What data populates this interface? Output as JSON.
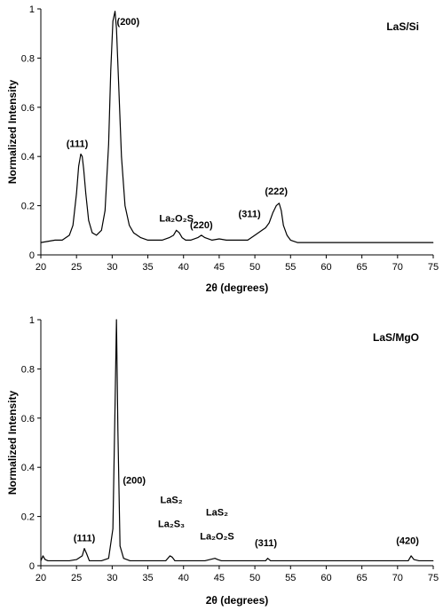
{
  "chart_data": [
    {
      "type": "line",
      "title": "LaS/Si",
      "xlabel": "2θ (degrees)",
      "ylabel": "Normalized Intensity",
      "xlim": [
        20,
        75
      ],
      "ylim": [
        0,
        1
      ],
      "xticks": [
        "20",
        "25",
        "30",
        "35",
        "40",
        "45",
        "50",
        "55",
        "60",
        "65",
        "70",
        "75"
      ],
      "yticks": [
        "0",
        "0.2",
        "0.4",
        "0.6",
        "0.8",
        "1"
      ],
      "grid": false,
      "series": [
        {
          "x": [
            20,
            21,
            22,
            23,
            24,
            24.5,
            25,
            25.3,
            25.6,
            25.8,
            26,
            26.3,
            26.7,
            27.2,
            27.8,
            28.5,
            29,
            29.5,
            29.8,
            30.1,
            30.4,
            30.6,
            30.9,
            31.3,
            31.8,
            32.4,
            33,
            34,
            35,
            36,
            37,
            38,
            38.6,
            39,
            39.4,
            39.8,
            40.3,
            41,
            42,
            42.5,
            43,
            44,
            45,
            46,
            47,
            48,
            49,
            50,
            51,
            51.5,
            52,
            52.5,
            53,
            53.4,
            53.7,
            54,
            54.5,
            55,
            56,
            57,
            58,
            60,
            62,
            64,
            66,
            68,
            70,
            72,
            74,
            75
          ],
          "values": [
            0.05,
            0.055,
            0.06,
            0.06,
            0.08,
            0.12,
            0.25,
            0.36,
            0.41,
            0.4,
            0.35,
            0.25,
            0.14,
            0.09,
            0.08,
            0.1,
            0.18,
            0.45,
            0.75,
            0.95,
            0.99,
            0.92,
            0.7,
            0.4,
            0.2,
            0.12,
            0.09,
            0.07,
            0.06,
            0.06,
            0.06,
            0.07,
            0.08,
            0.1,
            0.09,
            0.07,
            0.06,
            0.06,
            0.07,
            0.08,
            0.07,
            0.06,
            0.065,
            0.06,
            0.06,
            0.06,
            0.06,
            0.08,
            0.1,
            0.11,
            0.13,
            0.17,
            0.2,
            0.21,
            0.18,
            0.12,
            0.08,
            0.06,
            0.05,
            0.05,
            0.05,
            0.05,
            0.05,
            0.05,
            0.05,
            0.05,
            0.05,
            0.05,
            0.05,
            0.05
          ]
        }
      ],
      "annotations": [
        {
          "text": "(200)",
          "x": 30.5,
          "y": 1
        },
        {
          "text": "(111)",
          "x": 25.6,
          "y": 0.41
        },
        {
          "text": "La₂O₂S",
          "x": 39,
          "y": 0.1
        },
        {
          "text": "(220)",
          "x": 42.5,
          "y": 0.08
        },
        {
          "text": "(311)",
          "x": 49.5,
          "y": 0.11
        },
        {
          "text": "(222)",
          "x": 53.5,
          "y": 0.21
        }
      ]
    },
    {
      "type": "line",
      "title": "LaS/MgO",
      "xlabel": "2θ (degrees)",
      "ylabel": "Normalized Intensity",
      "xlim": [
        20,
        75
      ],
      "ylim": [
        0,
        1
      ],
      "xticks": [
        "20",
        "25",
        "30",
        "35",
        "40",
        "45",
        "50",
        "55",
        "60",
        "65",
        "70",
        "75"
      ],
      "yticks": [
        "0",
        "0.2",
        "0.4",
        "0.6",
        "0.8",
        "1"
      ],
      "grid": false,
      "series": [
        {
          "x": [
            20,
            20.3,
            20.6,
            21,
            22,
            23,
            24,
            25,
            25.8,
            26.1,
            26.4,
            26.8,
            27.5,
            28.5,
            29.5,
            30.1,
            30.4,
            30.6,
            30.8,
            31.1,
            31.6,
            32.5,
            34,
            36,
            37.5,
            38.1,
            38.4,
            38.8,
            39.5,
            41,
            43,
            44.4,
            44.8,
            45.3,
            47,
            50,
            51.5,
            51.8,
            52.2,
            53,
            55,
            60,
            65,
            70,
            71.5,
            71.9,
            72.3,
            73,
            75
          ],
          "values": [
            0.02,
            0.04,
            0.025,
            0.02,
            0.02,
            0.02,
            0.02,
            0.025,
            0.04,
            0.07,
            0.05,
            0.02,
            0.02,
            0.02,
            0.03,
            0.15,
            0.65,
            1.0,
            0.55,
            0.08,
            0.03,
            0.02,
            0.02,
            0.02,
            0.02,
            0.04,
            0.035,
            0.02,
            0.02,
            0.02,
            0.02,
            0.03,
            0.025,
            0.02,
            0.02,
            0.02,
            0.02,
            0.03,
            0.02,
            0.02,
            0.02,
            0.02,
            0.02,
            0.02,
            0.02,
            0.04,
            0.025,
            0.02,
            0.02
          ]
        }
      ],
      "annotations": [
        {
          "text": "(200)",
          "x": 30.6,
          "y": 0.55
        },
        {
          "text": "(111)",
          "x": 26.1,
          "y": 0.07
        },
        {
          "text": "LaS₂",
          "x": 38.3,
          "y": 0.16
        },
        {
          "text": "La₂S₃",
          "x": 38.3,
          "y": 0.11
        },
        {
          "text": "LaS₂",
          "x": 44.7,
          "y": 0.11
        },
        {
          "text": "La₂O₂S",
          "x": 44.7,
          "y": 0.06
        },
        {
          "text": "(311)",
          "x": 51.8,
          "y": 0.05
        },
        {
          "text": "(420)",
          "x": 71.9,
          "y": 0.06
        }
      ]
    }
  ]
}
